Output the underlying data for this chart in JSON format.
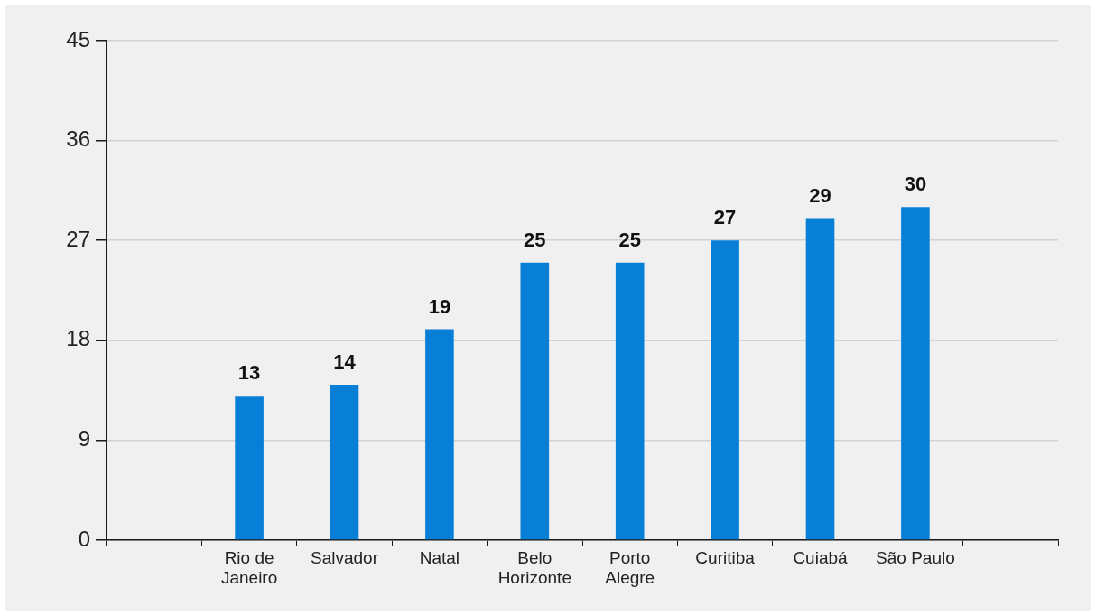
{
  "chart_data": {
    "type": "bar",
    "categories": [
      "Rio de Janeiro",
      "Salvador",
      "Natal",
      "Belo Horizonte",
      "Porto Alegre",
      "Curitiba",
      "Cuiabá",
      "São Paulo"
    ],
    "values": [
      13,
      14,
      19,
      25,
      25,
      27,
      29,
      30
    ],
    "color": "#087fd6",
    "ylim": [
      0,
      45
    ],
    "yticks": [
      0,
      9,
      18,
      27,
      36,
      45
    ],
    "grid": "y",
    "data_labels": true
  }
}
